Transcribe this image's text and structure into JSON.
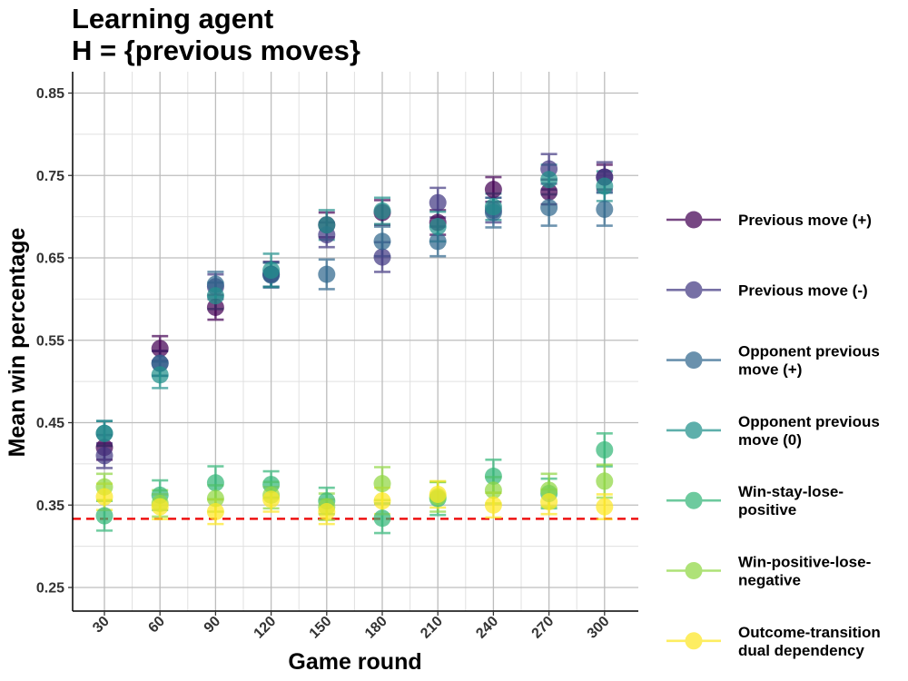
{
  "chart_data": {
    "type": "scatter",
    "title": [
      "Learning agent",
      "H = {previous moves}"
    ],
    "xlabel": "Game round",
    "ylabel": "Mean win percentage",
    "x": [
      30,
      60,
      90,
      120,
      150,
      180,
      210,
      240,
      270,
      300
    ],
    "x_tick_labels": [
      "30",
      "60",
      "90",
      "120",
      "150",
      "180",
      "210",
      "240",
      "270",
      "300"
    ],
    "y_ticks": [
      0.25,
      0.35,
      0.45,
      0.55,
      0.65,
      0.75,
      0.85
    ],
    "y_tick_labels": [
      "0.25",
      "0.35",
      "0.45",
      "0.55",
      "0.65",
      "0.75",
      "0.85"
    ],
    "ylim": [
      0.22,
      0.88
    ],
    "grid": true,
    "reference_line": {
      "y": 0.3333,
      "color": "#ee1111",
      "style": "dashed"
    },
    "legend_position": "right",
    "series": [
      {
        "name": "Previous move (+)",
        "color": "#440154",
        "values": [
          0.42,
          0.54,
          0.59,
          0.63,
          0.69,
          0.705,
          0.693,
          0.733,
          0.73,
          0.748
        ],
        "errors": [
          0.015,
          0.015,
          0.015,
          0.015,
          0.015,
          0.015,
          0.015,
          0.015,
          0.015,
          0.015
        ]
      },
      {
        "name": "Previous move (-)",
        "color": "#443a83",
        "values": [
          0.41,
          0.522,
          0.615,
          0.63,
          0.678,
          0.651,
          0.717,
          0.708,
          0.758,
          0.748
        ],
        "errors": [
          0.015,
          0.015,
          0.015,
          0.015,
          0.015,
          0.018,
          0.018,
          0.015,
          0.018,
          0.018
        ]
      },
      {
        "name": "Opponent previous\nmove (+)",
        "color": "#31688e",
        "values": [
          0.437,
          0.522,
          0.618,
          0.629,
          0.63,
          0.67,
          0.67,
          0.705,
          0.711,
          0.709
        ],
        "errors": [
          0.015,
          0.015,
          0.015,
          0.015,
          0.018,
          0.018,
          0.018,
          0.018,
          0.022,
          0.02
        ]
      },
      {
        "name": "Opponent previous\nmove (0)",
        "color": "#21918c",
        "values": [
          0.437,
          0.508,
          0.604,
          0.635,
          0.69,
          0.707,
          0.688,
          0.712,
          0.745,
          0.737
        ],
        "errors": [
          0.015,
          0.016,
          0.016,
          0.02,
          0.018,
          0.016,
          0.018,
          0.016,
          0.018,
          0.018
        ]
      },
      {
        "name": "Win-stay-lose-\npositive",
        "color": "#35b779",
        "values": [
          0.337,
          0.362,
          0.377,
          0.375,
          0.355,
          0.334,
          0.358,
          0.385,
          0.364,
          0.417
        ],
        "errors": [
          0.018,
          0.018,
          0.02,
          0.016,
          0.016,
          0.018,
          0.02,
          0.02,
          0.018,
          0.02
        ]
      },
      {
        "name": "Win-positive-lose-\nnegative",
        "color": "#90d743",
        "values": [
          0.372,
          0.352,
          0.358,
          0.362,
          0.348,
          0.376,
          0.36,
          0.368,
          0.368,
          0.379
        ],
        "errors": [
          0.016,
          0.016,
          0.016,
          0.016,
          0.016,
          0.02,
          0.018,
          0.016,
          0.02,
          0.02
        ]
      },
      {
        "name": "Outcome-transition\ndual dependency",
        "color": "#fde725",
        "values": [
          0.36,
          0.348,
          0.342,
          0.357,
          0.342,
          0.355,
          0.363,
          0.35,
          0.354,
          0.348
        ],
        "errors": [
          0.016,
          0.015,
          0.015,
          0.015,
          0.015,
          0.016,
          0.016,
          0.015,
          0.015,
          0.015
        ]
      }
    ]
  }
}
